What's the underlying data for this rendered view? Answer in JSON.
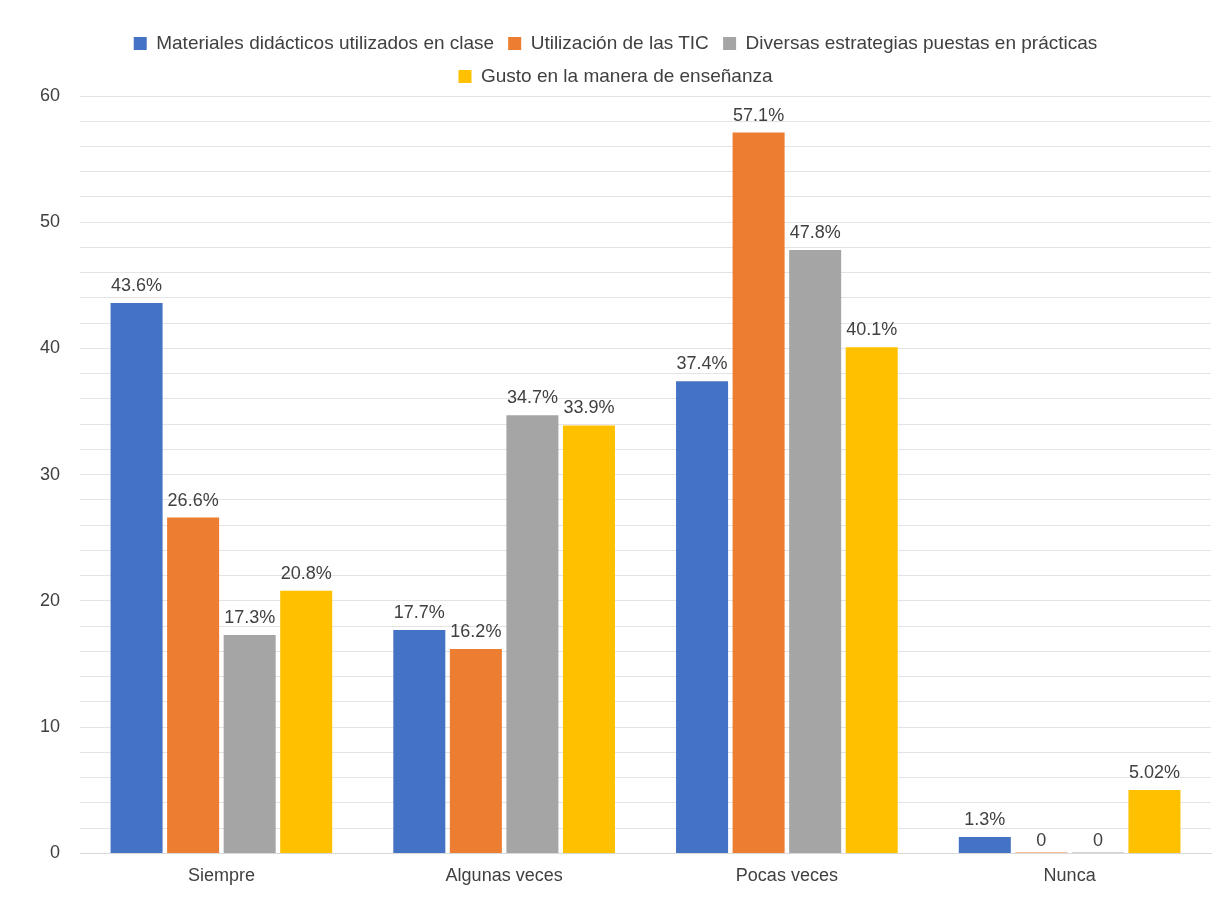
{
  "chart_data": {
    "type": "bar",
    "categories": [
      "Siempre",
      "Algunas veces",
      "Pocas veces",
      "Nunca"
    ],
    "series": [
      {
        "name": "Materiales didácticos utilizados en clase",
        "color": "#4472c4",
        "values": [
          43.6,
          17.7,
          37.4,
          1.3
        ],
        "value_labels": [
          "43.6%",
          "17.7%",
          "37.4%",
          "1.3%"
        ]
      },
      {
        "name": "Utilización de las TIC",
        "color": "#ed7d31",
        "values": [
          26.6,
          16.2,
          57.1,
          0
        ],
        "value_labels": [
          "26.6%",
          "16.2%",
          "57.1%",
          "0"
        ]
      },
      {
        "name": "Diversas estrategias puestas en prácticas",
        "color": "#a5a5a5",
        "values": [
          17.3,
          34.7,
          47.8,
          0
        ],
        "value_labels": [
          "17.3%",
          "34.7%",
          "47.8%",
          "0"
        ]
      },
      {
        "name": "Gusto en la manera de enseñanza",
        "color": "#ffc000",
        "values": [
          20.8,
          33.9,
          40.1,
          5.02
        ],
        "value_labels": [
          "20.8%",
          "33.9%",
          "40.1%",
          "5.02%"
        ]
      }
    ],
    "ylim": [
      0,
      60
    ],
    "yticks": [
      0,
      {
        "value": 2,
        "label": null
      },
      {
        "value": 4,
        "label": null
      },
      {
        "value": 6,
        "label": null
      },
      {
        "value": 8,
        "label": null
      },
      10,
      {
        "value": 12,
        "label": null
      },
      {
        "value": 14,
        "label": null
      },
      {
        "value": 16,
        "label": null
      },
      {
        "value": 18,
        "label": null
      },
      20,
      {
        "value": 22,
        "label": null
      },
      {
        "value": 24,
        "label": null
      },
      {
        "value": 26,
        "label": null
      },
      {
        "value": 28,
        "label": null
      },
      30,
      {
        "value": 32,
        "label": null
      },
      {
        "value": 34,
        "label": null
      },
      {
        "value": 36,
        "label": null
      },
      {
        "value": 38,
        "label": null
      },
      40,
      {
        "value": 42,
        "label": null
      },
      {
        "value": 44,
        "label": null
      },
      {
        "value": 46,
        "label": null
      },
      {
        "value": 48,
        "label": null
      },
      50,
      {
        "value": 52,
        "label": null
      },
      {
        "value": 54,
        "label": null
      },
      {
        "value": 56,
        "label": null
      },
      {
        "value": 58,
        "label": null
      },
      60
    ],
    "grid": "y",
    "legend": "top"
  }
}
